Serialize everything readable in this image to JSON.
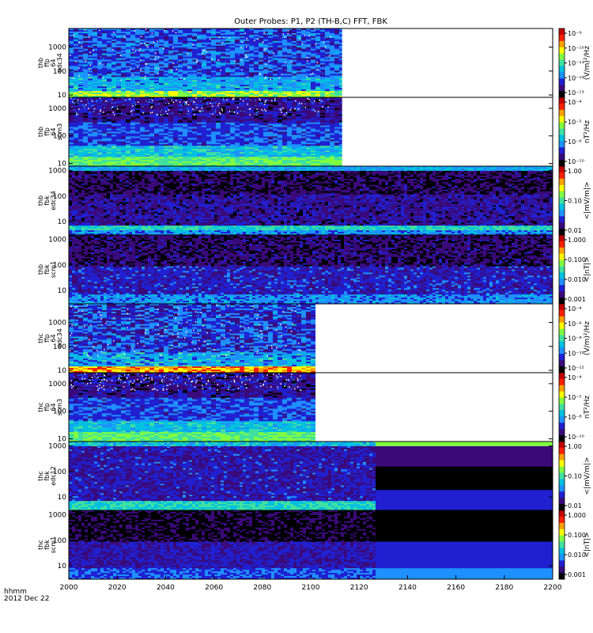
{
  "title": "Outer Probes: P1, P2 (TH-B,C) FFT, FBK",
  "footer": {
    "xunit": "hhmm",
    "date": "2012 Dec 22"
  },
  "chart_data": {
    "type": "heatmap",
    "x_ticks": [
      2000,
      2020,
      2040,
      2060,
      2080,
      2100,
      2120,
      2140,
      2160,
      2180,
      2200
    ],
    "xlim": [
      2000,
      2200
    ],
    "colorscale": [
      "#000000",
      "#3a0a7a",
      "#2020d0",
      "#1e90ff",
      "#00c0e0",
      "#40e0a0",
      "#80ff40",
      "#ffff00",
      "#ffa000",
      "#ff2000",
      "#c00000"
    ],
    "panels": [
      {
        "label": [
          "thb",
          "ffp",
          "64",
          "edc34"
        ],
        "y_ticks": [
          "10",
          "100",
          "1000"
        ],
        "ylog": true,
        "ylim": [
          8,
          6000
        ],
        "colorbar_ticks": [
          "10⁻⁹",
          "10⁻¹⁰",
          "10⁻¹¹",
          "10⁻¹²",
          "10⁻¹³"
        ],
        "colorbar_label": "(V/m)²/Hz",
        "data_end": 2113,
        "noise_end": 2108,
        "style": "fft_e"
      },
      {
        "label": [
          "thb",
          "ffp",
          "64",
          "scm3"
        ],
        "y_ticks": [
          "10",
          "100",
          "1000"
        ],
        "ylog": true,
        "ylim": [
          8,
          2500
        ],
        "colorbar_ticks": [
          "10⁻⁴",
          "10⁻⁵",
          "10⁻⁶",
          "10⁻¹⁰"
        ],
        "colorbar_label": "nT²/Hz",
        "data_end": 2113,
        "noise_end": 2108,
        "style": "fft_b"
      },
      {
        "label": [
          "thb",
          "fbk",
          "edc34"
        ],
        "y_ticks": [
          "10",
          "100",
          "1000"
        ],
        "ylog": true,
        "ylim": [
          3,
          1500
        ],
        "colorbar_ticks": [
          "1.00",
          "0.10",
          "0.01"
        ],
        "colorbar_label": "<|mV/m|>",
        "data_end": 2200,
        "style": "fbk_e"
      },
      {
        "label": [
          "thb",
          "fbk",
          "scm1"
        ],
        "y_ticks": [
          "10",
          "100",
          "1000"
        ],
        "ylog": true,
        "ylim": [
          3,
          1500
        ],
        "colorbar_ticks": [
          "1.000",
          "0.100",
          "0.010",
          "0.001"
        ],
        "colorbar_label": "<|nT|>",
        "data_end": 2200,
        "style": "fbk_b"
      },
      {
        "label": [
          "thc",
          "ffp",
          "64",
          "edc34"
        ],
        "y_ticks": [
          "10",
          "100",
          "1000"
        ],
        "ylog": true,
        "ylim": [
          8,
          6000
        ],
        "colorbar_ticks": [
          "10⁻⁴",
          "10⁻⁶",
          "10⁻⁸",
          "10⁻¹⁰",
          "10⁻¹²"
        ],
        "colorbar_label": "(V/m)²/Hz",
        "data_end": 2102,
        "noise_end": 2096,
        "style": "fft_e2"
      },
      {
        "label": [
          "thc",
          "ffp",
          "64",
          "scm3"
        ],
        "y_ticks": [
          "10",
          "100",
          "1000"
        ],
        "ylog": true,
        "ylim": [
          8,
          2500
        ],
        "colorbar_ticks": [
          "10⁻⁴",
          "10⁻⁵",
          "10⁻⁸",
          "10⁻¹⁰"
        ],
        "colorbar_label": "nT²/Hz",
        "data_end": 2102,
        "noise_end": 2096,
        "style": "fft_b"
      },
      {
        "label": [
          "thc",
          "fbk",
          "edc12"
        ],
        "y_ticks": [
          "10",
          "100",
          "1000"
        ],
        "ylog": true,
        "ylim": [
          3,
          1500
        ],
        "colorbar_ticks": [
          "1.00",
          "0.10",
          "0.01"
        ],
        "colorbar_label": "<|mV/m|>",
        "data_end": 2200,
        "change_at": 2126,
        "style": "fbk_e2"
      },
      {
        "label": [
          "thc",
          "fbk",
          "scm1"
        ],
        "y_ticks": [
          "10",
          "100",
          "1000"
        ],
        "ylog": true,
        "ylim": [
          3,
          1500
        ],
        "colorbar_ticks": [
          "1.000",
          "0.100",
          "0.010",
          "0.001"
        ],
        "colorbar_label": "<|nT|>",
        "data_end": 2200,
        "change_at": 2126,
        "style": "fbk_b2"
      }
    ]
  }
}
